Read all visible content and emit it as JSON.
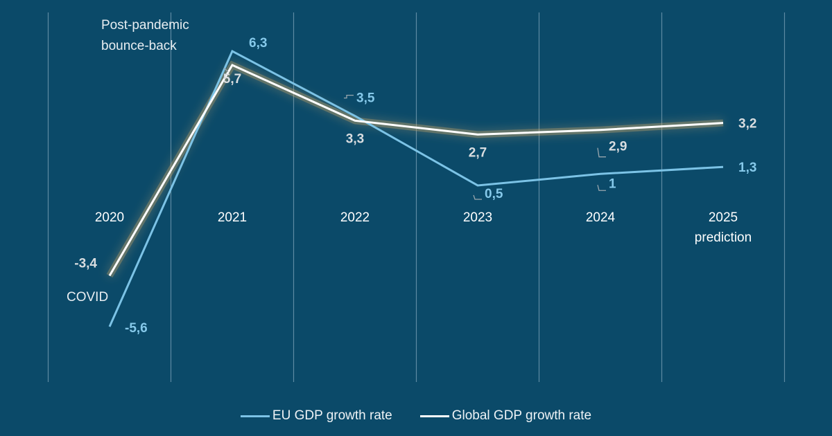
{
  "chart_data": {
    "type": "line",
    "title": "",
    "xlabel": "",
    "ylabel": "",
    "categories": [
      "2020",
      "2021",
      "2022",
      "2023",
      "2024",
      "2025"
    ],
    "category_sublabels": [
      "",
      "",
      "",
      "",
      "",
      "prediction"
    ],
    "series": [
      {
        "name": "EU GDP growth rate",
        "color": "#7cc3e6",
        "values": [
          -5.6,
          6.3,
          3.5,
          0.5,
          1.0,
          1.3
        ],
        "labels": [
          "-5,6",
          "6,3",
          "3,5",
          "0,5",
          "1",
          "1,3"
        ]
      },
      {
        "name": "Global GDP growth rate",
        "color": "#ffffff",
        "values": [
          -3.4,
          5.7,
          3.3,
          2.7,
          2.9,
          3.2
        ],
        "labels": [
          "-3,4",
          "5,7",
          "3,3",
          "2,7",
          "2,9",
          "3,2"
        ]
      }
    ],
    "ylim": [
      -7.5,
      8.5
    ],
    "grid": "vertical",
    "legend_position": "bottom",
    "annotations": [
      {
        "text_lines": [
          "Post-pandemic",
          "bounce-back"
        ],
        "near": "2021"
      },
      {
        "text_lines": [
          "COVID"
        ],
        "near": "2020"
      }
    ]
  },
  "legend": {
    "eu_label": "EU GDP growth rate",
    "global_label": "Global GDP growth rate"
  }
}
